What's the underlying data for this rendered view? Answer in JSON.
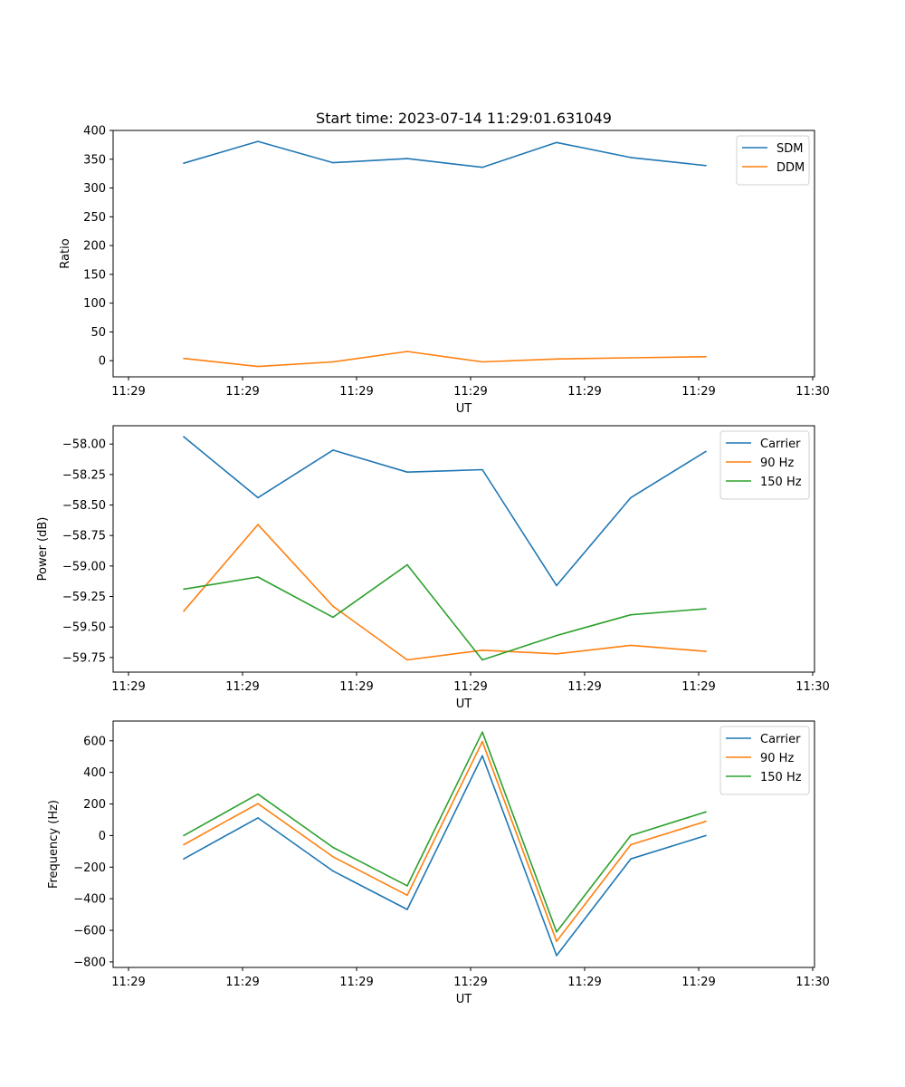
{
  "figure": {
    "title": "Start time: 2023-07-14 11:29:01.631049"
  },
  "chart_data": [
    {
      "type": "line",
      "title": "Start time: 2023-07-14 11:29:01.631049",
      "xlabel": "UT",
      "ylabel": "Ratio",
      "x_tick_labels": [
        "11:29",
        "11:29",
        "11:29",
        "11:29",
        "11:29",
        "11:29",
        "11:30"
      ],
      "y_ticks": [
        0,
        50,
        100,
        150,
        200,
        250,
        300,
        350,
        400
      ],
      "ylim": [
        -28,
        400
      ],
      "legend_position": "top-right",
      "series": [
        {
          "name": "SDM",
          "color": "#1f77b4",
          "values": [
            343,
            381,
            344,
            351,
            336,
            379,
            353,
            339
          ]
        },
        {
          "name": "DDM",
          "color": "#ff7f0e",
          "values": [
            4,
            -10,
            -2,
            16,
            -2,
            3,
            5,
            7
          ]
        }
      ]
    },
    {
      "type": "line",
      "title": "",
      "xlabel": "UT",
      "ylabel": "Power (dB)",
      "x_tick_labels": [
        "11:29",
        "11:29",
        "11:29",
        "11:29",
        "11:29",
        "11:29",
        "11:30"
      ],
      "y_ticks": [
        -58.0,
        -58.25,
        -58.5,
        -58.75,
        -59.0,
        -59.25,
        -59.5,
        -59.75
      ],
      "y_tick_labels": [
        "−58.00",
        "−58.25",
        "−58.50",
        "−58.75",
        "−59.00",
        "−59.25",
        "−59.50",
        "−59.75"
      ],
      "ylim": [
        -59.87,
        -57.85
      ],
      "legend_position": "top-right",
      "series": [
        {
          "name": "Carrier",
          "color": "#1f77b4",
          "values": [
            -57.94,
            -58.44,
            -58.05,
            -58.23,
            -58.21,
            -59.16,
            -58.44,
            -58.06
          ]
        },
        {
          "name": "90 Hz",
          "color": "#ff7f0e",
          "values": [
            -59.37,
            -58.66,
            -59.33,
            -59.77,
            -59.69,
            -59.72,
            -59.65,
            -59.7
          ]
        },
        {
          "name": "150 Hz",
          "color": "#2ca02c",
          "values": [
            -59.19,
            -59.09,
            -59.42,
            -58.99,
            -59.77,
            -59.57,
            -59.4,
            -59.35
          ]
        }
      ]
    },
    {
      "type": "line",
      "title": "",
      "xlabel": "UT",
      "ylabel": "Frequency (Hz)",
      "x_tick_labels": [
        "11:29",
        "11:29",
        "11:29",
        "11:29",
        "11:29",
        "11:29",
        "11:30"
      ],
      "y_ticks": [
        -800,
        -600,
        -400,
        -200,
        0,
        200,
        400,
        600
      ],
      "y_tick_labels": [
        "−800",
        "−600",
        "−400",
        "−200",
        "0",
        "200",
        "400",
        "600"
      ],
      "ylim": [
        -835,
        725
      ],
      "legend_position": "top-right",
      "series": [
        {
          "name": "Carrier",
          "color": "#1f77b4",
          "values": [
            -148,
            112,
            -225,
            -468,
            505,
            -760,
            -148,
            0
          ]
        },
        {
          "name": "90 Hz",
          "color": "#ff7f0e",
          "values": [
            -58,
            202,
            -135,
            -378,
            595,
            -670,
            -58,
            90
          ]
        },
        {
          "name": "150 Hz",
          "color": "#2ca02c",
          "values": [
            0,
            262,
            -75,
            -318,
            655,
            -610,
            0,
            150
          ]
        }
      ]
    }
  ]
}
